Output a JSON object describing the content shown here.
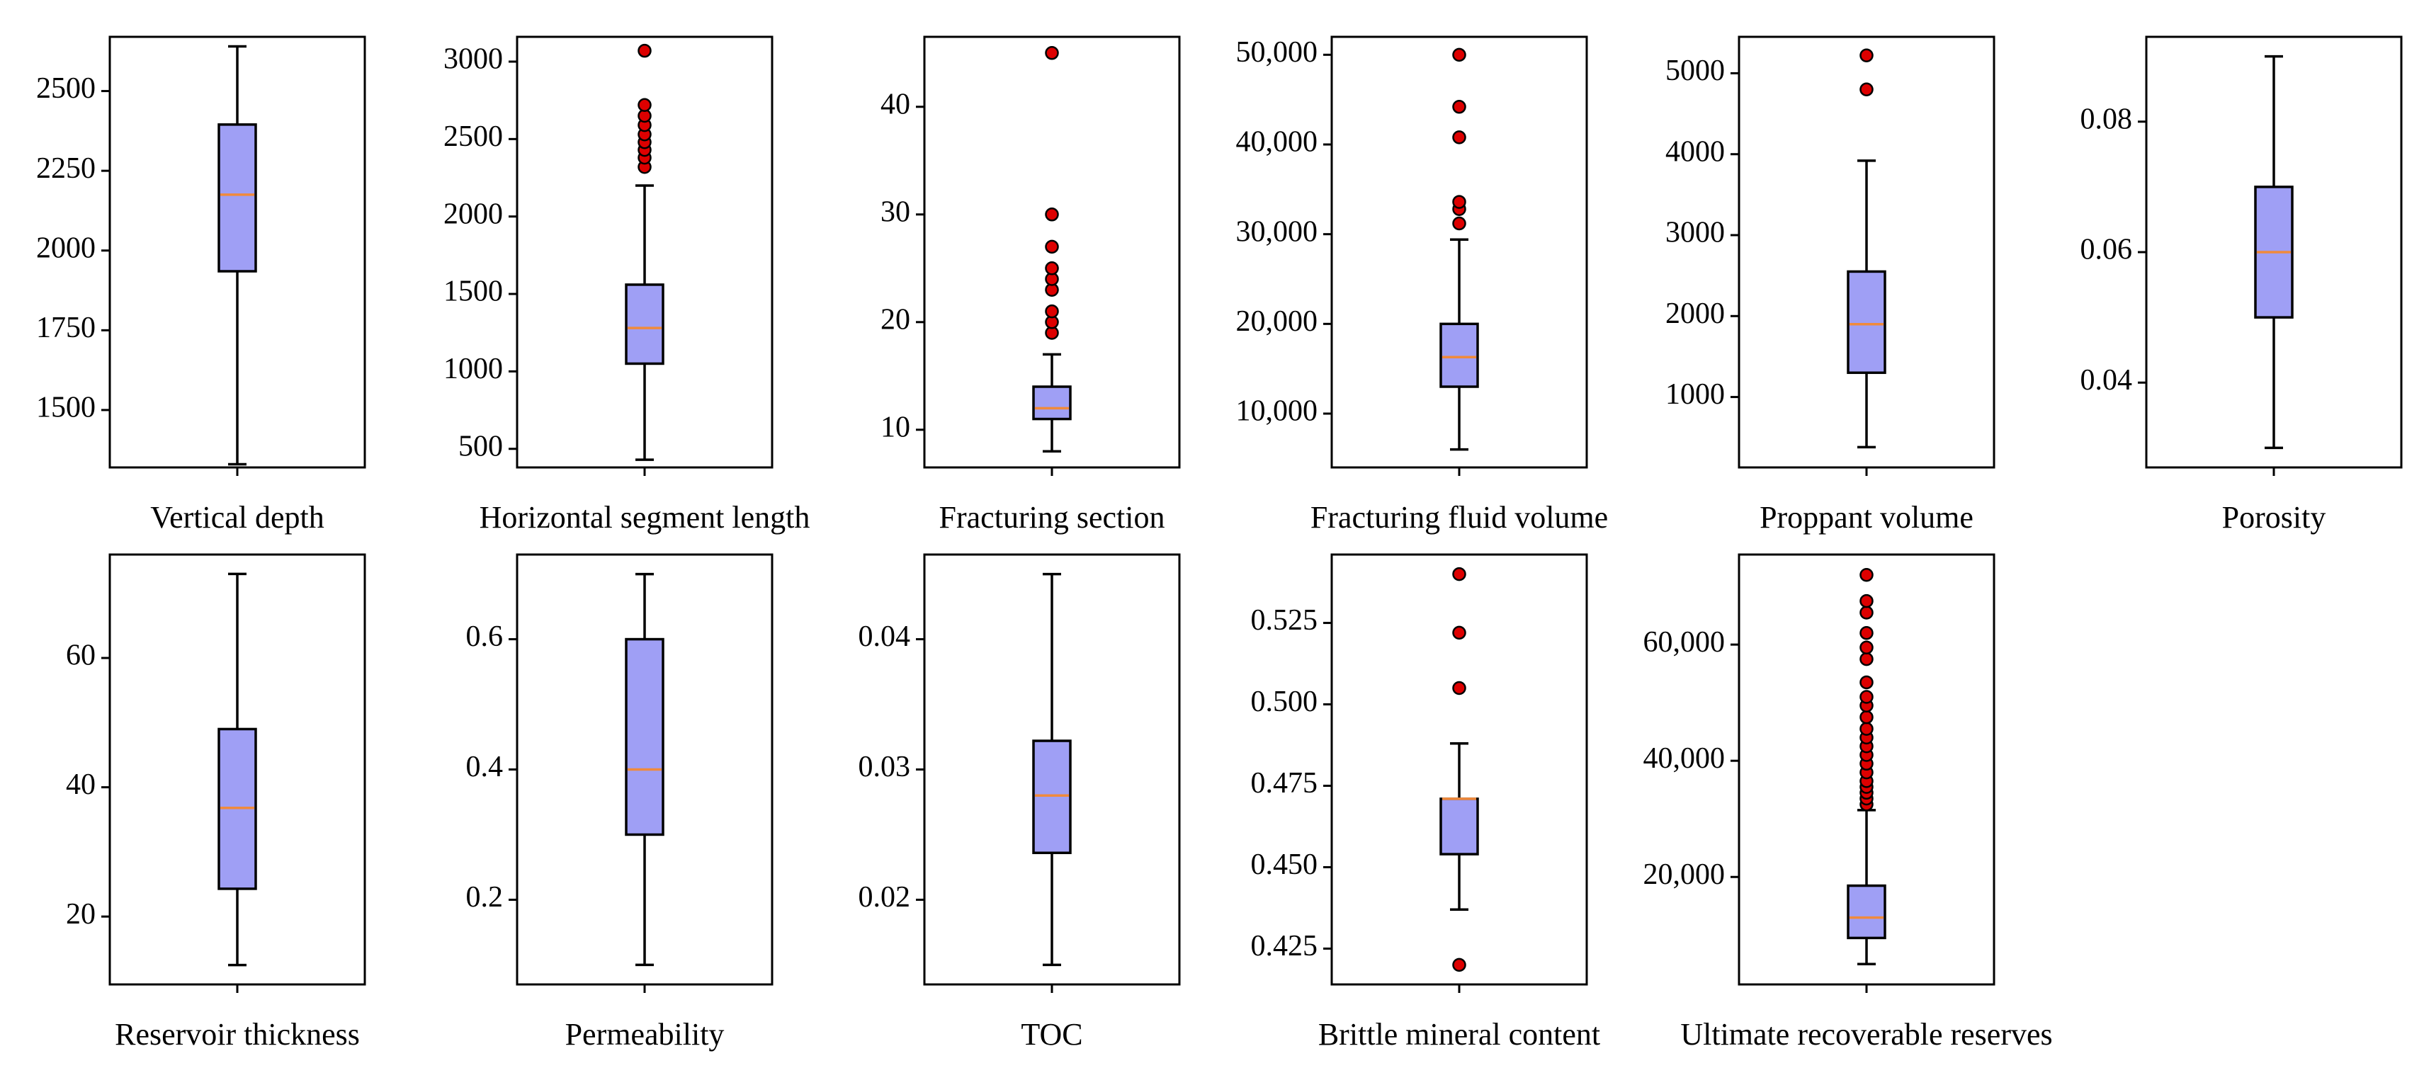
{
  "colors": {
    "box_fill": "#9f9ff5",
    "box_edge": "#000000",
    "median": "#f08a3c",
    "outlier_fill": "#dd0000",
    "outlier_edge": "#000000",
    "axes": "#000000",
    "background": "#ffffff"
  },
  "chart_data": [
    {
      "type": "box",
      "xlabel": "Vertical depth",
      "ylim": [
        1320,
        2670
      ],
      "yticks": [
        1500,
        1750,
        2000,
        2250,
        2500
      ],
      "ytick_labels": [
        "1500",
        "1750",
        "2000",
        "2250",
        "2500"
      ],
      "whisker_low": 1330,
      "q1": 1935,
      "median": 2175,
      "q3": 2395,
      "whisker_high": 2640,
      "outliers": []
    },
    {
      "type": "box",
      "xlabel": "Horizontal segment length",
      "ylim": [
        380,
        3160
      ],
      "yticks": [
        500,
        1000,
        1500,
        2000,
        2500,
        3000
      ],
      "ytick_labels": [
        "500",
        "1000",
        "1500",
        "2000",
        "2500",
        "3000"
      ],
      "whisker_low": 430,
      "q1": 1050,
      "median": 1280,
      "q3": 1560,
      "whisker_high": 2200,
      "outliers": [
        2320,
        2380,
        2430,
        2480,
        2530,
        2590,
        2650,
        2720,
        3070
      ]
    },
    {
      "type": "box",
      "xlabel": "Fracturing section",
      "ylim": [
        6.5,
        46.5
      ],
      "yticks": [
        10,
        20,
        30,
        40
      ],
      "ytick_labels": [
        "10",
        "20",
        "30",
        "40"
      ],
      "whisker_low": 8,
      "q1": 11,
      "median": 12,
      "q3": 14,
      "whisker_high": 17,
      "outliers": [
        19,
        20,
        21,
        23,
        24,
        25,
        27,
        30,
        45
      ]
    },
    {
      "type": "box",
      "xlabel": "Fracturing fluid volume",
      "ylim": [
        4000,
        52000
      ],
      "yticks": [
        10000,
        20000,
        30000,
        40000,
        50000
      ],
      "ytick_labels": [
        "10,000",
        "20,000",
        "30,000",
        "40,000",
        "50,000"
      ],
      "whisker_low": 6000,
      "q1": 13000,
      "median": 16300,
      "q3": 20000,
      "whisker_high": 29400,
      "outliers": [
        31200,
        32800,
        33600,
        40800,
        44200,
        50000
      ]
    },
    {
      "type": "box",
      "xlabel": "Proppant volume",
      "ylim": [
        130,
        5450
      ],
      "yticks": [
        1000,
        2000,
        3000,
        4000,
        5000
      ],
      "ytick_labels": [
        "1000",
        "2000",
        "3000",
        "4000",
        "5000"
      ],
      "whisker_low": 380,
      "q1": 1300,
      "median": 1900,
      "q3": 2550,
      "whisker_high": 3920,
      "outliers": [
        4800,
        5220
      ]
    },
    {
      "type": "box",
      "xlabel": "Porosity",
      "ylim": [
        0.027,
        0.093
      ],
      "yticks": [
        0.04,
        0.06,
        0.08
      ],
      "ytick_labels": [
        "0.04",
        "0.06",
        "0.08"
      ],
      "whisker_low": 0.03,
      "q1": 0.05,
      "median": 0.06,
      "q3": 0.07,
      "whisker_high": 0.09,
      "outliers": []
    },
    {
      "type": "box",
      "xlabel": "Reservoir thickness",
      "ylim": [
        9.5,
        76
      ],
      "yticks": [
        20,
        40,
        60
      ],
      "ytick_labels": [
        "20",
        "40",
        "60"
      ],
      "whisker_low": 12.5,
      "q1": 24.3,
      "median": 36.8,
      "q3": 49,
      "whisker_high": 73,
      "outliers": []
    },
    {
      "type": "box",
      "xlabel": "Permeability",
      "ylim": [
        0.07,
        0.73
      ],
      "yticks": [
        0.2,
        0.4,
        0.6
      ],
      "ytick_labels": [
        "0.2",
        "0.4",
        "0.6"
      ],
      "whisker_low": 0.1,
      "q1": 0.3,
      "median": 0.4,
      "q3": 0.6,
      "whisker_high": 0.7,
      "outliers": []
    },
    {
      "type": "box",
      "xlabel": "TOC",
      "ylim": [
        0.0135,
        0.0465
      ],
      "yticks": [
        0.02,
        0.03,
        0.04
      ],
      "ytick_labels": [
        "0.02",
        "0.03",
        "0.04"
      ],
      "whisker_low": 0.015,
      "q1": 0.0236,
      "median": 0.028,
      "q3": 0.0322,
      "whisker_high": 0.045,
      "outliers": []
    },
    {
      "type": "box",
      "xlabel": "Brittle mineral content",
      "ylim": [
        0.414,
        0.546
      ],
      "yticks": [
        0.425,
        0.45,
        0.475,
        0.5,
        0.525
      ],
      "ytick_labels": [
        "0.425",
        "0.450",
        "0.475",
        "0.500",
        "0.525"
      ],
      "whisker_low": 0.437,
      "q1": 0.454,
      "median": 0.471,
      "q3": 0.471,
      "whisker_high": 0.488,
      "outliers": [
        0.42,
        0.505,
        0.522,
        0.54
      ]
    },
    {
      "type": "box",
      "xlabel": "Ultimate recoverable reserves",
      "ylim": [
        1500,
        75500
      ],
      "yticks": [
        20000,
        40000,
        60000
      ],
      "ytick_labels": [
        "20,000",
        "40,000",
        "60,000"
      ],
      "whisker_low": 5000,
      "q1": 9500,
      "median": 13000,
      "q3": 18500,
      "whisker_high": 31500,
      "outliers": [
        32500,
        33500,
        34500,
        35500,
        36500,
        38000,
        39500,
        41000,
        42500,
        44000,
        45500,
        47500,
        49500,
        51000,
        53500,
        57500,
        59500,
        62000,
        65500,
        67500,
        72000
      ]
    }
  ]
}
